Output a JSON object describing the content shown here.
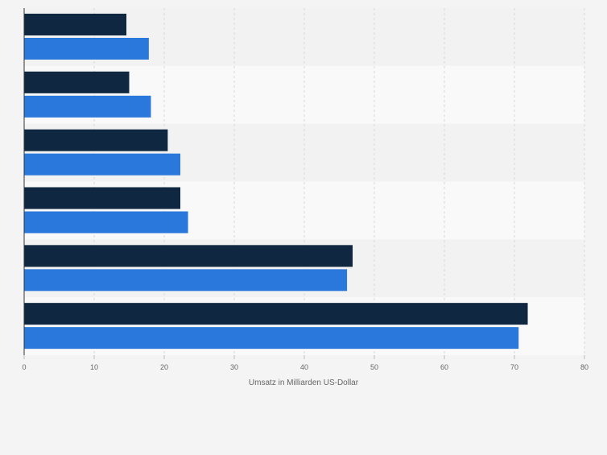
{
  "chart_data": {
    "type": "bar",
    "orientation": "horizontal",
    "categories": [
      "",
      "",
      "",
      "",
      "",
      ""
    ],
    "series": [
      {
        "color": "#0f2740",
        "values": [
          14.6,
          15.0,
          20.5,
          22.3,
          46.9,
          71.9
        ]
      },
      {
        "color": "#2a78dc",
        "values": [
          17.8,
          18.1,
          22.3,
          23.4,
          46.1,
          70.6
        ]
      }
    ],
    "xlabel": "Umsatz in Milliarden US-Dollar",
    "ylabel": "",
    "xlim": [
      0,
      80
    ],
    "xticks": [
      0,
      10,
      20,
      30,
      40,
      50,
      60,
      70,
      80
    ],
    "grid": "vertical-dashed",
    "legend": "none"
  }
}
